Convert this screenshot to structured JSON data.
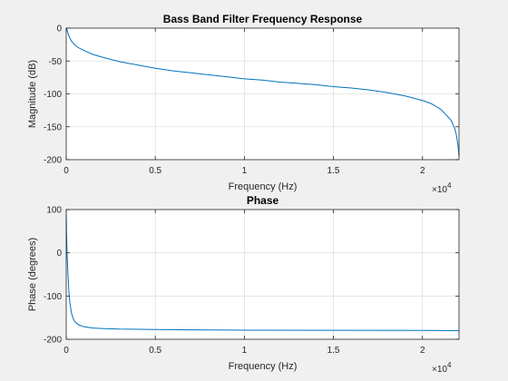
{
  "chart_data": [
    {
      "type": "line",
      "title": "Bass Band Filter Frequency Response",
      "xlabel": "Frequency (Hz)",
      "ylabel": "Magnitude (dB)",
      "x_multiplier_label": "×10",
      "x_multiplier_exponent": "4",
      "xlim": [
        0,
        22050
      ],
      "ylim": [
        -200,
        0
      ],
      "x_ticks": [
        0,
        5000,
        10000,
        15000,
        20000
      ],
      "x_tick_labels": [
        "0",
        "0.5",
        "1",
        "1.5",
        "2"
      ],
      "y_ticks": [
        -200,
        -150,
        -100,
        -50,
        0
      ],
      "y_tick_labels": [
        "-200",
        "-150",
        "-100",
        "-50",
        "0"
      ],
      "grid": true,
      "legend": "none",
      "color": "#0072bd",
      "series": [
        {
          "x": [
            0,
            50,
            100,
            200,
            300,
            500,
            700,
            1000,
            1500,
            2000,
            3000,
            4000,
            5000,
            6000,
            7000,
            8000,
            9000,
            10000,
            11000,
            12000,
            13000,
            14000,
            15000,
            16000,
            17000,
            18000,
            19000,
            20000,
            20500,
            21000,
            21300,
            21600,
            21800,
            21900,
            22000,
            22050
          ],
          "y": [
            0,
            -3,
            -8,
            -15,
            -20,
            -26,
            -30,
            -34,
            -40,
            -44,
            -51,
            -56,
            -61,
            -65,
            -68,
            -71,
            -74,
            -77,
            -79,
            -82,
            -84,
            -86,
            -89,
            -91,
            -94,
            -98,
            -103,
            -110,
            -115,
            -123,
            -131,
            -140,
            -152,
            -162,
            -180,
            -195
          ]
        }
      ]
    },
    {
      "type": "line",
      "title": "Phase",
      "xlabel": "Frequency (Hz)",
      "ylabel": "Phase (degrees)",
      "x_multiplier_label": "×10",
      "x_multiplier_exponent": "4",
      "xlim": [
        0,
        22050
      ],
      "ylim": [
        -200,
        100
      ],
      "x_ticks": [
        0,
        5000,
        10000,
        15000,
        20000
      ],
      "x_tick_labels": [
        "0",
        "0.5",
        "1",
        "1.5",
        "2"
      ],
      "y_ticks": [
        -200,
        -100,
        0,
        100
      ],
      "y_tick_labels": [
        "-200",
        "-100",
        "0",
        "100"
      ],
      "grid": true,
      "legend": "none",
      "color": "#0072bd",
      "series": [
        {
          "x": [
            0,
            20,
            50,
            100,
            150,
            200,
            300,
            400,
            500,
            700,
            1000,
            1500,
            2000,
            3000,
            5000,
            8000,
            10000,
            15000,
            20000,
            22050
          ],
          "y": [
            90,
            40,
            -5,
            -50,
            -90,
            -115,
            -140,
            -153,
            -160,
            -167,
            -171,
            -174,
            -175,
            -176.5,
            -177.5,
            -178.5,
            -179,
            -179.3,
            -179.6,
            -180
          ]
        }
      ]
    }
  ]
}
